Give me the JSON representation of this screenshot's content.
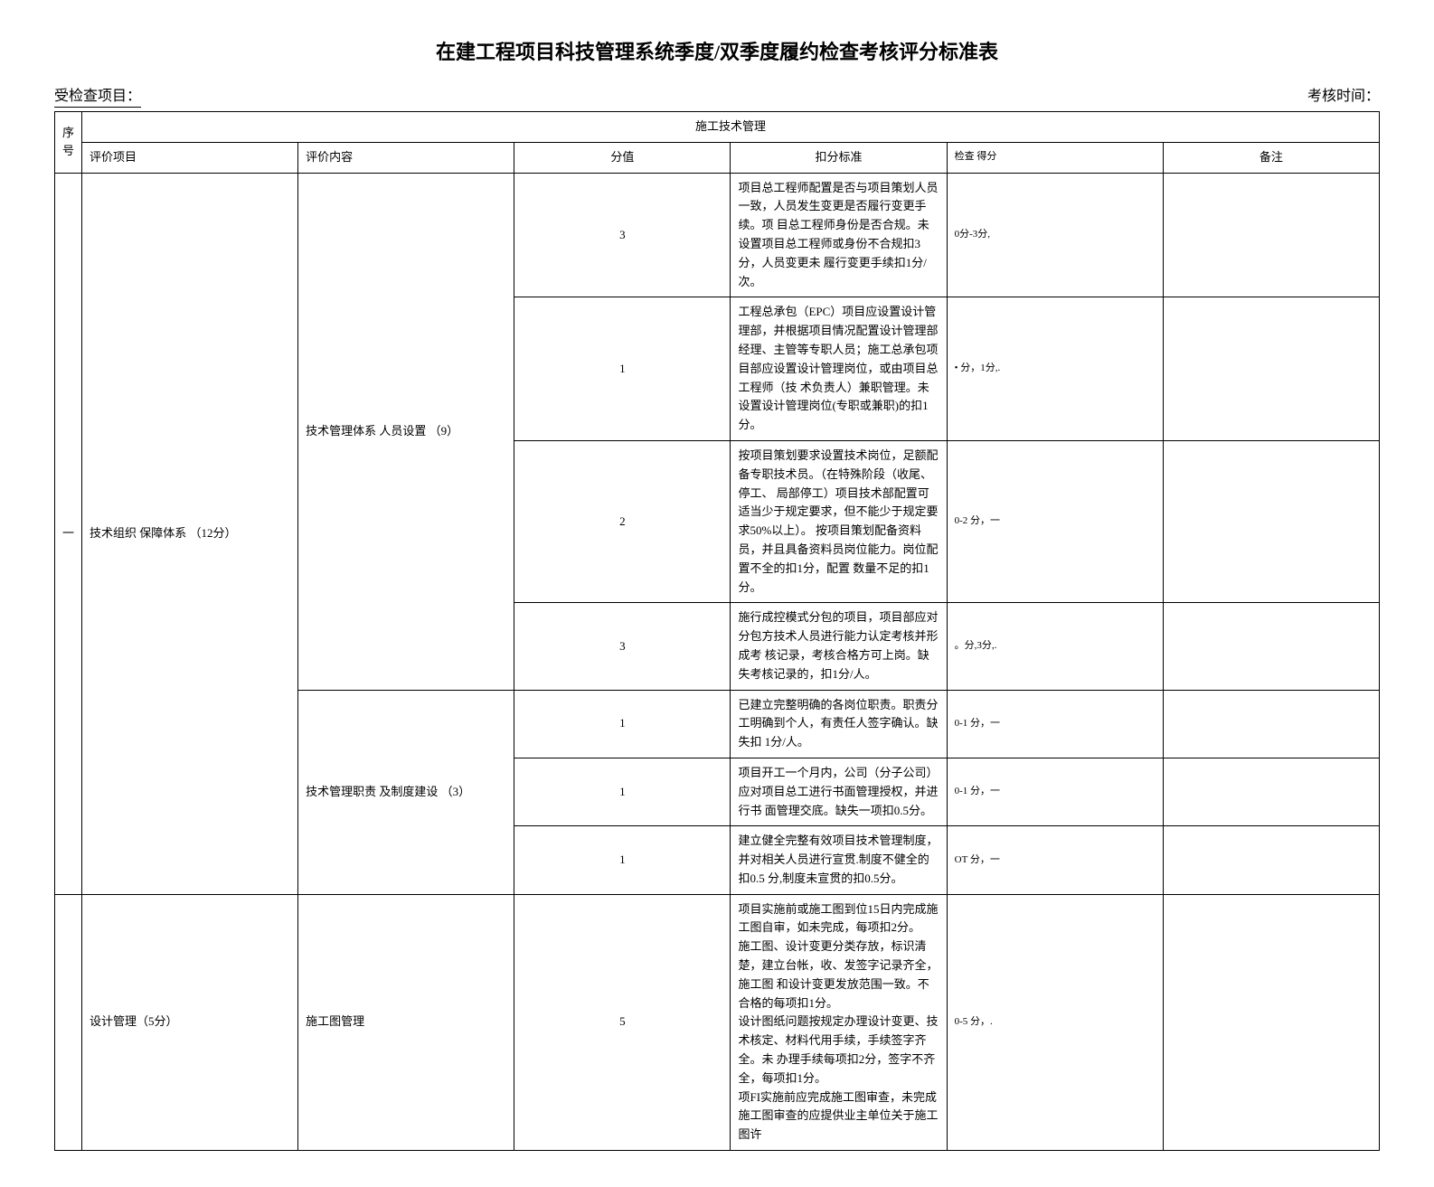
{
  "title": "在建工程项目科技管理系统季度/双季度履约检查考核评分标准表",
  "header_left": "受检查项目：",
  "header_right": "考核时间：",
  "section_title": "施工技术管理",
  "columns": {
    "seq": "序号",
    "eval_item": "评价项目",
    "eval_content": "评价内容",
    "score": "分值",
    "standard": "扣分标准",
    "check": "检查 得分",
    "remark": "备注"
  },
  "groups": [
    {
      "seq": "一",
      "eval_item": "技术组织 保障体系 （12分）",
      "sub_groups": [
        {
          "eval_content": "技术管理体系 人员设置 （9）",
          "rows": [
            {
              "score": "3",
              "standard": "项目总工程师配置是否与项目策划人员一致，人员发生变更是否履行变更手续。项 目总工程师身份是否合规。未设置项目总工程师或身份不合规扣3分，人员变更未 履行变更手续扣1分/次。",
              "check": "0分-3分,"
            },
            {
              "score": "1",
              "standard": "工程总承包（EPC）项目应设置设计管理部，并根据项目情况配置设计管理部经理、主管等专职人员；施工总承包项目部应设置设计管理岗位，或由项目总工程师（技 术负责人）兼职管理。未设置设计管理岗位(专职或兼职)的扣1分。",
              "check": "• 分，1分,."
            },
            {
              "score": "2",
              "standard": "按项目策划要求设置技术岗位，足额配备专职技术员。（在特殊阶段（收尾、停工、 局部停工）项目技术部配置可适当少于规定要求，但不能少于规定要求50%以上）。 按项目策划配备资料员，并且具备资料员岗位能力。岗位配置不全的扣1分，配置 数量不足的扣1分。",
              "check": "0-2 分，一"
            },
            {
              "score": "3",
              "standard": "施行成控模式分包的项目，项目部应对分包方技术人员进行能力认定考核并形成考 核记录，考核合格方可上岗。缺失考核记录的，扣1分/人。",
              "check": "。分,3分,."
            }
          ]
        },
        {
          "eval_content": "技术管理职责 及制度建设 （3）",
          "rows": [
            {
              "score": "1",
              "standard": "已建立完整明确的各岗位职责。职责分工明确到个人，有责任人签字确认。缺失扣 1分/人。",
              "check": "0-1 分，一"
            },
            {
              "score": "1",
              "standard": "项目开工一个月内，公司（分子公司）应对项目总工进行书面管理授权，并进行书 面管理交底。缺失一项扣0.5分。",
              "check": "0-1 分，一"
            },
            {
              "score": "1",
              "standard": "建立健全完整有效项目技术管理制度，并对相关人员进行宣贯.制度不健全的扣0.5 分,制度未宣贯的扣0.5分。",
              "check": "OT 分，一"
            }
          ]
        }
      ]
    },
    {
      "seq": "",
      "eval_item": "设计管理（5分）",
      "sub_groups": [
        {
          "eval_content": "施工图管理",
          "rows": [
            {
              "score": "5",
              "standard": "项目实施前或施工图到位15日内完成施工图自审，如未完成，每项扣2分。\n施工图、设计变更分类存放，标识清楚，建立台帐，收、发签字记录齐全，施工图 和设计变更发放范围一致。不合格的每项扣1分。\n设计图纸问题按规定办理设计变更、技术核定、材料代用手续，手续签字齐全。未 办理手续每项扣2分，签字不齐全，每项扣1分。\n项FI实施前应完成施工图审查，未完成施工图审查的应提供业主单位关于施工图许",
              "check": "0-5 分，."
            }
          ]
        }
      ]
    }
  ]
}
